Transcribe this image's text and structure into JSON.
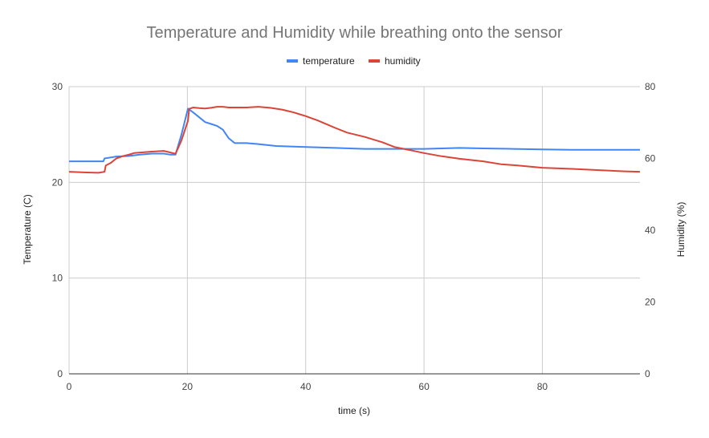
{
  "chart_data": {
    "type": "line",
    "title": "Temperature and Humidity while breathing onto the sensor",
    "xlabel": "time (s)",
    "ylabel_left": "Temperature (C)",
    "ylabel_right": "Humidity (%)",
    "xlim": [
      0,
      96.5
    ],
    "ylim_left": [
      0,
      30
    ],
    "ylim_right": [
      0,
      80
    ],
    "x_ticks": [
      "0",
      "20",
      "40",
      "60",
      "80"
    ],
    "y_ticks_left": [
      "0",
      "10",
      "20",
      "30"
    ],
    "y_ticks_right": [
      "0",
      "20",
      "40",
      "60",
      "80"
    ],
    "grid": true,
    "legend_position": "top",
    "series": [
      {
        "name": "temperature",
        "color": "#4285f4",
        "axis": "left",
        "points": [
          [
            0,
            22.2
          ],
          [
            2,
            22.2
          ],
          [
            4,
            22.2
          ],
          [
            5.8,
            22.2
          ],
          [
            6,
            22.5
          ],
          [
            7,
            22.6
          ],
          [
            8,
            22.7
          ],
          [
            10,
            22.75
          ],
          [
            12,
            22.9
          ],
          [
            14,
            23.0
          ],
          [
            16,
            23.0
          ],
          [
            17,
            22.9
          ],
          [
            18,
            22.9
          ],
          [
            19,
            25.0
          ],
          [
            20.1,
            27.7
          ],
          [
            21,
            27.3
          ],
          [
            22,
            26.8
          ],
          [
            23,
            26.3
          ],
          [
            24,
            26.1
          ],
          [
            25,
            25.9
          ],
          [
            26,
            25.5
          ],
          [
            27,
            24.6
          ],
          [
            28,
            24.1
          ],
          [
            30,
            24.1
          ],
          [
            32,
            24.0
          ],
          [
            35,
            23.8
          ],
          [
            40,
            23.7
          ],
          [
            45,
            23.6
          ],
          [
            50,
            23.5
          ],
          [
            55,
            23.5
          ],
          [
            60,
            23.5
          ],
          [
            66,
            23.6
          ],
          [
            70,
            23.55
          ],
          [
            75,
            23.5
          ],
          [
            80,
            23.45
          ],
          [
            85,
            23.4
          ],
          [
            90,
            23.4
          ],
          [
            96.5,
            23.4
          ]
        ]
      },
      {
        "name": "humidity",
        "color": "#db4437",
        "axis": "right",
        "points": [
          [
            0,
            56.3
          ],
          [
            3,
            56.1
          ],
          [
            5,
            56.0
          ],
          [
            6,
            56.3
          ],
          [
            6.2,
            58.0
          ],
          [
            7,
            58.7
          ],
          [
            8,
            60.0
          ],
          [
            9,
            60.6
          ],
          [
            10,
            61.0
          ],
          [
            11,
            61.5
          ],
          [
            14,
            61.9
          ],
          [
            16,
            62.1
          ],
          [
            17,
            61.7
          ],
          [
            18,
            61.3
          ],
          [
            19,
            65.0
          ],
          [
            20.1,
            70.5
          ],
          [
            20.3,
            73.8
          ],
          [
            21,
            74.2
          ],
          [
            22,
            74.0
          ],
          [
            23,
            73.9
          ],
          [
            24,
            74.1
          ],
          [
            25,
            74.4
          ],
          [
            26,
            74.4
          ],
          [
            27,
            74.2
          ],
          [
            30,
            74.2
          ],
          [
            32,
            74.4
          ],
          [
            34,
            74.1
          ],
          [
            36,
            73.6
          ],
          [
            37,
            73.2
          ],
          [
            38,
            72.8
          ],
          [
            39,
            72.3
          ],
          [
            40,
            71.8
          ],
          [
            41,
            71.2
          ],
          [
            42,
            70.6
          ],
          [
            43,
            69.9
          ],
          [
            44,
            69.2
          ],
          [
            45,
            68.5
          ],
          [
            47,
            67.2
          ],
          [
            50,
            66.0
          ],
          [
            53,
            64.5
          ],
          [
            55,
            63.2
          ],
          [
            58,
            62.2
          ],
          [
            60,
            61.5
          ],
          [
            63,
            60.6
          ],
          [
            66,
            59.9
          ],
          [
            70,
            59.2
          ],
          [
            73,
            58.4
          ],
          [
            76,
            58.0
          ],
          [
            80,
            57.4
          ],
          [
            85,
            57.1
          ],
          [
            90,
            56.7
          ],
          [
            94,
            56.4
          ],
          [
            96.5,
            56.3
          ]
        ]
      }
    ]
  }
}
